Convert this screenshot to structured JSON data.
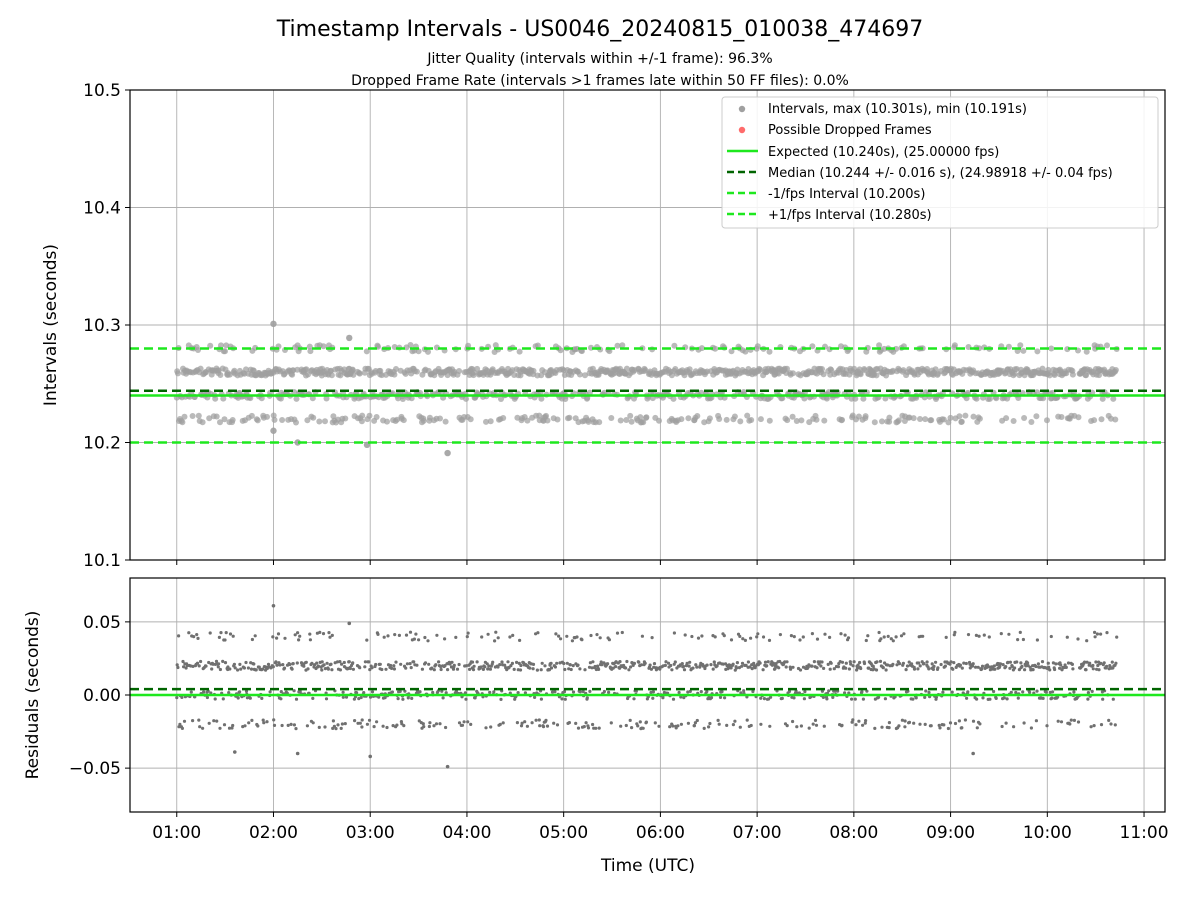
{
  "chart_data": [
    {
      "type": "scatter",
      "title": "Timestamp Intervals - US0046_20240815_010038_474697",
      "subtitle_lines": [
        "Jitter Quality (intervals within +/-1 frame): 96.3%",
        "Dropped Frame Rate (intervals >1 frames late within 50 FF files): 0.0%"
      ],
      "xlabel": "",
      "ylabel": "Intervals (seconds)",
      "xlim": [
        "00:31",
        "11:13"
      ],
      "ylim": [
        10.1,
        10.5
      ],
      "yticks": [
        10.1,
        10.2,
        10.3,
        10.4,
        10.5
      ],
      "ytick_labels": [
        "10.1",
        "10.2",
        "10.3",
        "10.4",
        "10.5"
      ],
      "grid": true,
      "legend_position": "top-right",
      "legend": [
        {
          "label": "Intervals, max (10.301s), min (10.191s)",
          "kind": "dot",
          "color": "#a0a0a0"
        },
        {
          "label": "Possible Dropped Frames",
          "kind": "dot",
          "color": "#ff6b6b"
        },
        {
          "label": "Expected (10.240s), (25.00000 fps)",
          "kind": "line",
          "color": "#1ee81e"
        },
        {
          "label": "Median (10.244 +/- 0.016 s), (24.98918 +/- 0.04 fps)",
          "kind": "dashed",
          "color": "#006400"
        },
        {
          "label": "-1/fps Interval (10.200s)",
          "kind": "dashed",
          "color": "#1ee81e"
        },
        {
          "label": "+1/fps Interval (10.280s)",
          "kind": "dashed",
          "color": "#1ee81e"
        }
      ],
      "reference_lines": [
        {
          "name": "expected",
          "y": 10.24,
          "style": "solid",
          "color": "#1ee81e"
        },
        {
          "name": "median",
          "y": 10.244,
          "style": "dashed",
          "color": "#006400"
        },
        {
          "name": "minus-1fps",
          "y": 10.2,
          "style": "dashed",
          "color": "#1ee81e"
        },
        {
          "name": "plus-1fps",
          "y": 10.28,
          "style": "dashed",
          "color": "#1ee81e"
        }
      ],
      "series_summary": {
        "x_range": [
          "01:00",
          "10:43"
        ],
        "levels_seconds": [
          10.22,
          10.24,
          10.26,
          10.28
        ],
        "max": 10.301,
        "max_at": "02:00",
        "min": 10.191,
        "min_at": "03:48",
        "notable_points": [
          {
            "x": "02:00",
            "y": 10.301
          },
          {
            "x": "02:47",
            "y": 10.289
          },
          {
            "x": "03:48",
            "y": 10.191
          },
          {
            "x": "02:00",
            "y": 10.21
          },
          {
            "x": "02:15",
            "y": 10.2
          },
          {
            "x": "02:58",
            "y": 10.198
          }
        ],
        "point_color": "#a0a0a0"
      }
    },
    {
      "type": "scatter",
      "xlabel": "Time (UTC)",
      "ylabel": "Residuals (seconds)",
      "xlim": [
        "00:31",
        "11:13"
      ],
      "xticks": [
        "01:00",
        "02:00",
        "03:00",
        "04:00",
        "05:00",
        "06:00",
        "07:00",
        "08:00",
        "09:00",
        "10:00",
        "11:00"
      ],
      "ylim": [
        -0.08,
        0.08
      ],
      "yticks": [
        -0.05,
        0.0,
        0.05
      ],
      "ytick_labels": [
        "−0.05",
        "0.00",
        "0.05"
      ],
      "grid": true,
      "reference_lines": [
        {
          "name": "expected",
          "y": 0.0,
          "style": "solid",
          "color": "#1ee81e"
        },
        {
          "name": "median",
          "y": 0.004,
          "style": "dashed",
          "color": "#006400"
        }
      ],
      "series_summary": {
        "x_range": [
          "01:00",
          "10:43"
        ],
        "levels_seconds": [
          -0.02,
          0.0,
          0.02,
          0.04
        ],
        "max": 0.061,
        "min": -0.049,
        "notable_points": [
          {
            "x": "02:00",
            "y": 0.061
          },
          {
            "x": "02:47",
            "y": 0.049
          },
          {
            "x": "03:48",
            "y": -0.049
          },
          {
            "x": "03:00",
            "y": -0.042
          },
          {
            "x": "02:15",
            "y": -0.04
          },
          {
            "x": "01:36",
            "y": -0.039
          },
          {
            "x": "09:14",
            "y": -0.04
          }
        ],
        "point_color": "#707070"
      }
    }
  ]
}
